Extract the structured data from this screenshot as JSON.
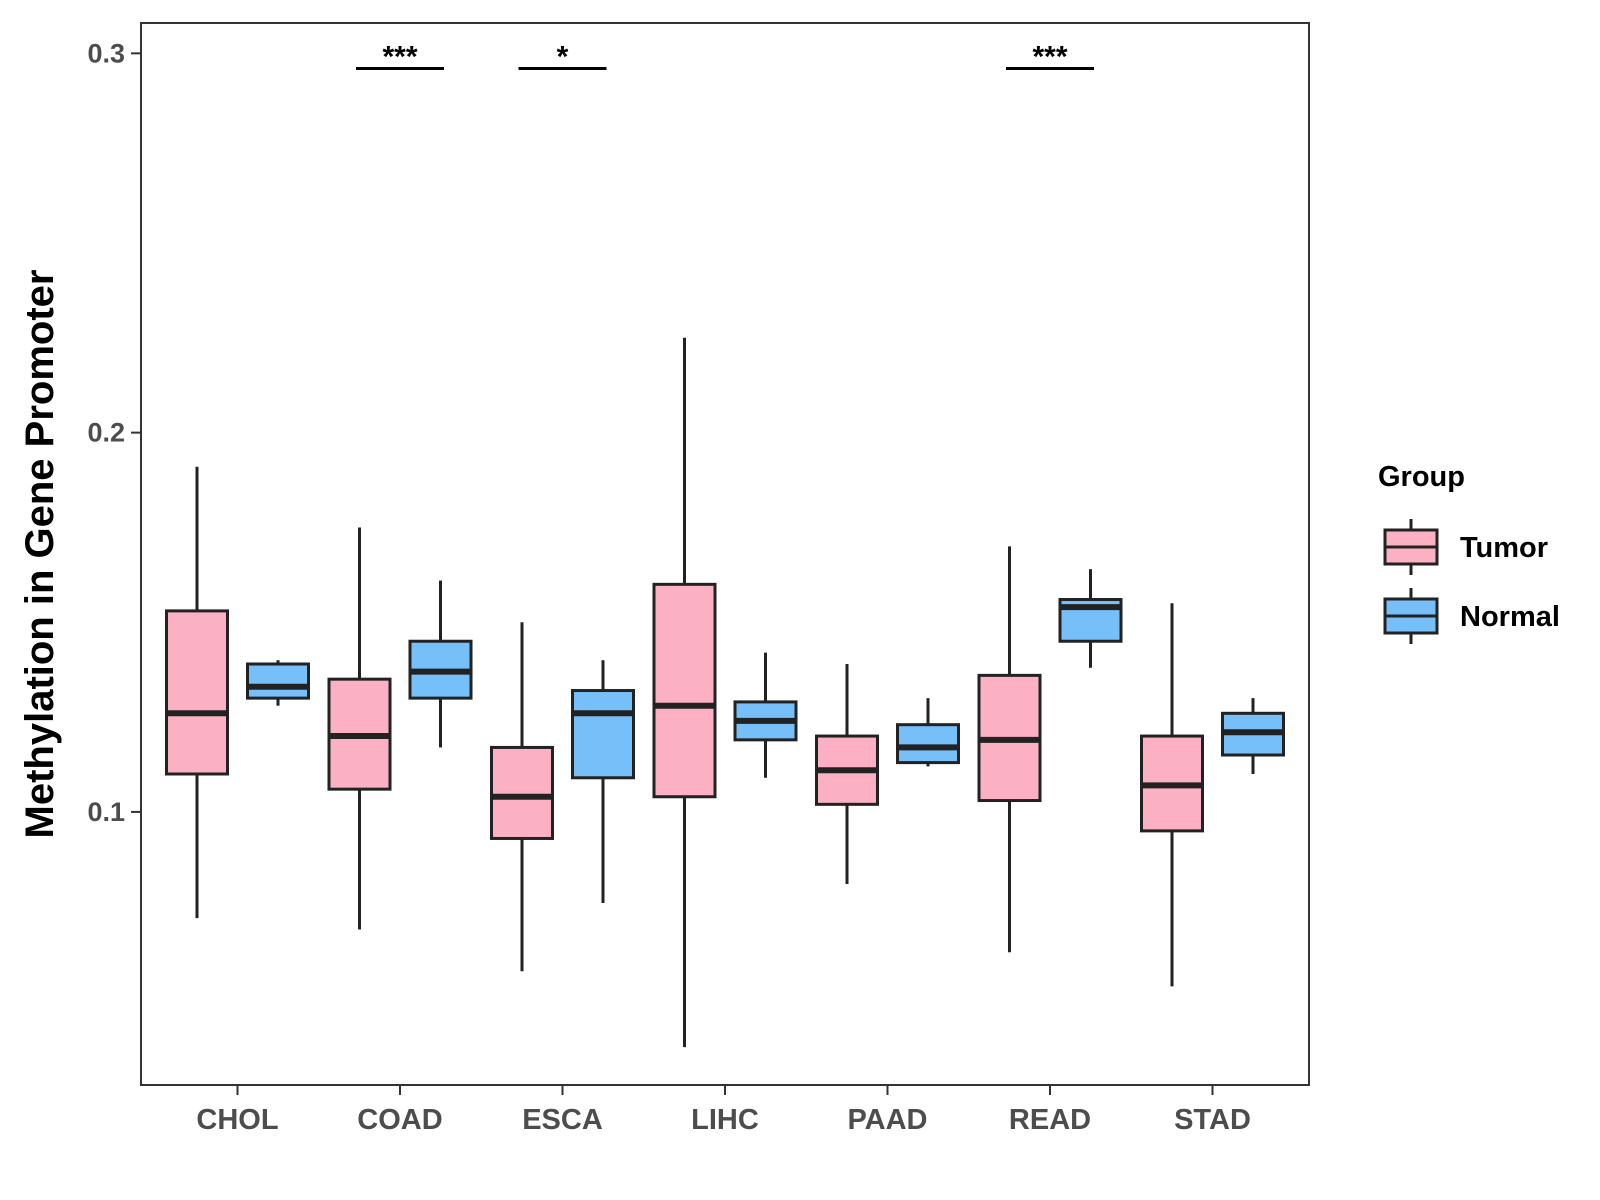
{
  "chart_data": {
    "type": "boxplot",
    "title": "",
    "xlabel": "",
    "ylabel": "Methylation in Gene Promoter",
    "ylim": [
      0.028,
      0.308
    ],
    "yticks": [
      0.1,
      0.2,
      0.3
    ],
    "ytick_labels": [
      "0.1",
      "0.2",
      "0.3"
    ],
    "grid": false,
    "categories": [
      "CHOL",
      "COAD",
      "ESCA",
      "LIHC",
      "PAAD",
      "READ",
      "STAD"
    ],
    "legend": {
      "title": "Group",
      "position": "right",
      "entries": [
        {
          "name": "Tumor",
          "color": "#fbb1c3"
        },
        {
          "name": "Normal",
          "color": "#76bff9"
        }
      ]
    },
    "series": [
      {
        "name": "Tumor",
        "color": "#fbb1c3",
        "boxes": [
          {
            "min": 0.072,
            "q1": 0.11,
            "median": 0.126,
            "q3": 0.153,
            "max": 0.191
          },
          {
            "min": 0.069,
            "q1": 0.106,
            "median": 0.12,
            "q3": 0.135,
            "max": 0.175
          },
          {
            "min": 0.058,
            "q1": 0.093,
            "median": 0.104,
            "q3": 0.117,
            "max": 0.15
          },
          {
            "min": 0.038,
            "q1": 0.104,
            "median": 0.128,
            "q3": 0.16,
            "max": 0.225
          },
          {
            "min": 0.081,
            "q1": 0.102,
            "median": 0.111,
            "q3": 0.12,
            "max": 0.139
          },
          {
            "min": 0.063,
            "q1": 0.103,
            "median": 0.119,
            "q3": 0.136,
            "max": 0.17
          },
          {
            "min": 0.054,
            "q1": 0.095,
            "median": 0.107,
            "q3": 0.12,
            "max": 0.155
          }
        ]
      },
      {
        "name": "Normal",
        "color": "#76bff9",
        "boxes": [
          {
            "min": 0.128,
            "q1": 0.13,
            "median": 0.133,
            "q3": 0.139,
            "max": 0.14
          },
          {
            "min": 0.117,
            "q1": 0.13,
            "median": 0.137,
            "q3": 0.145,
            "max": 0.161
          },
          {
            "min": 0.076,
            "q1": 0.109,
            "median": 0.126,
            "q3": 0.132,
            "max": 0.14
          },
          {
            "min": 0.109,
            "q1": 0.119,
            "median": 0.124,
            "q3": 0.129,
            "max": 0.142
          },
          {
            "min": 0.112,
            "q1": 0.113,
            "median": 0.117,
            "q3": 0.123,
            "max": 0.13
          },
          {
            "min": 0.138,
            "q1": 0.145,
            "median": 0.154,
            "q3": 0.156,
            "max": 0.164
          },
          {
            "min": 0.11,
            "q1": 0.115,
            "median": 0.121,
            "q3": 0.126,
            "max": 0.13
          }
        ]
      }
    ],
    "annotations": [
      {
        "category": "COAD",
        "label": "***",
        "y": 0.296
      },
      {
        "category": "ESCA",
        "label": "*",
        "y": 0.296
      },
      {
        "category": "READ",
        "label": "***",
        "y": 0.296
      }
    ]
  }
}
